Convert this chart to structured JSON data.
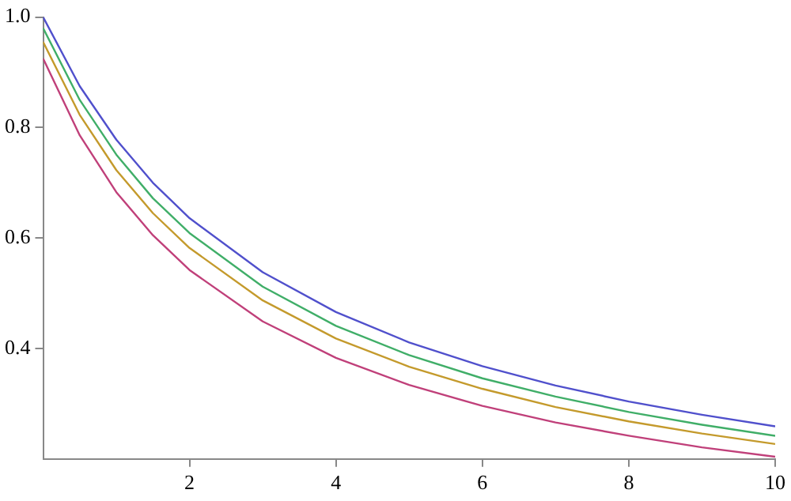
{
  "chart_data": {
    "type": "line",
    "x": [
      0,
      0.5,
      1,
      1.5,
      2,
      3,
      4,
      5,
      6,
      7,
      8,
      9,
      10
    ],
    "xlim": [
      0,
      10
    ],
    "xticks": [
      2,
      4,
      6,
      8,
      10
    ],
    "ylim": [
      0.2,
      1.0
    ],
    "yticks": [
      0.4,
      0.6,
      0.8,
      {
        "value": 1,
        "label": "1.0"
      }
    ],
    "grid": false,
    "legend": false,
    "marker": "none",
    "line_style": "solid",
    "series": [
      {
        "color": "#5050cc",
        "values": [
          1.0,
          0.875,
          0.778,
          0.7,
          0.636,
          0.538,
          0.466,
          0.411,
          0.368,
          0.333,
          0.304,
          0.28,
          0.259
        ]
      },
      {
        "color": "#40ae68",
        "values": [
          0.98,
          0.85,
          0.751,
          0.672,
          0.609,
          0.512,
          0.441,
          0.388,
          0.346,
          0.313,
          0.285,
          0.262,
          0.242
        ]
      },
      {
        "color": "#c49a2c",
        "values": [
          0.955,
          0.823,
          0.723,
          0.645,
          0.582,
          0.487,
          0.418,
          0.367,
          0.327,
          0.294,
          0.268,
          0.246,
          0.227
        ]
      },
      {
        "color": "#c0407a",
        "values": [
          0.925,
          0.786,
          0.683,
          0.605,
          0.542,
          0.449,
          0.383,
          0.334,
          0.296,
          0.266,
          0.242,
          0.221,
          0.204
        ]
      }
    ]
  }
}
